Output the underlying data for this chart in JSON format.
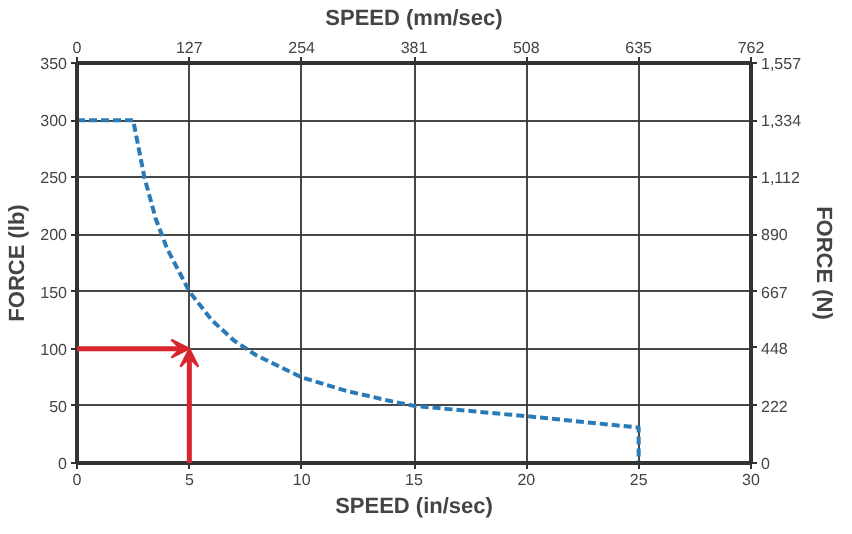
{
  "chart_data": {
    "type": "line",
    "xlabel": "SPEED (in/sec)",
    "x2label": "SPEED (mm/sec)",
    "ylabel": "FORCE (lb)",
    "y2label": "FORCE (N)",
    "x": [
      0,
      2.5,
      3,
      3.5,
      4,
      5,
      6,
      7,
      8,
      10,
      12,
      14,
      15,
      20,
      25,
      25
    ],
    "series": [
      {
        "color": "#2a7ab8",
        "values": [
          300,
          300,
          250,
          214,
          188,
          150,
          125,
          107,
          94,
          75,
          63,
          54,
          50,
          41,
          31,
          0
        ]
      }
    ],
    "xlim": [
      0,
      30
    ],
    "xticks": [
      0,
      5,
      10,
      15,
      20,
      25,
      30
    ],
    "x2lim": [
      0,
      762
    ],
    "x2ticks": [
      0,
      127,
      254,
      381,
      508,
      635,
      762
    ],
    "ylim": [
      0,
      350
    ],
    "yticks": [
      0,
      50,
      100,
      150,
      200,
      250,
      300,
      350
    ],
    "y2lim": [
      0,
      1557
    ],
    "y2ticks": [
      0,
      222,
      448,
      667,
      890,
      {
        "value": 1112,
        "label": "1,112"
      },
      {
        "value": 1334,
        "label": "1,334"
      },
      {
        "value": 1557,
        "label": "1,557"
      }
    ],
    "grid": true,
    "marker": "none",
    "line_style": "dashed"
  }
}
